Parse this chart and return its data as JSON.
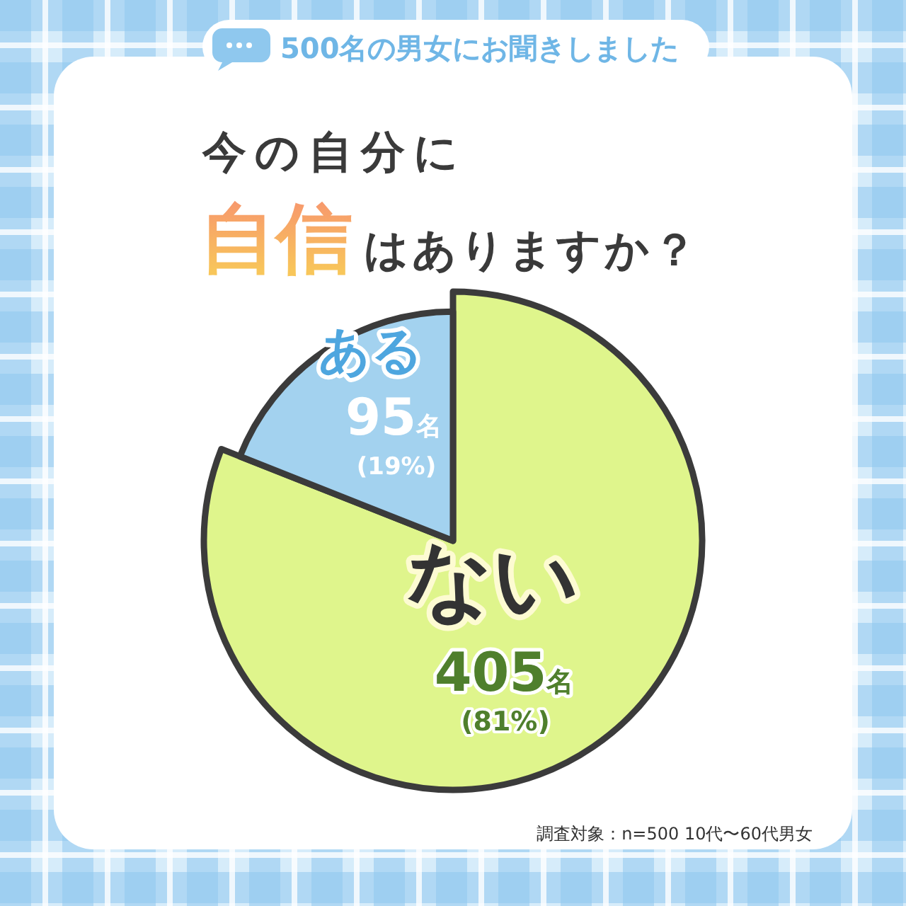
{
  "chart_data": {
    "type": "pie",
    "title": "今の自分に自信はありますか？",
    "subtitle": "500名の男女にお聞きしました",
    "categories": [
      "ある",
      "ない"
    ],
    "values": [
      95,
      405
    ],
    "colors": [
      "#a3d2ef",
      "#dff58c"
    ],
    "value_labels": [
      "95名 (19%)",
      "405名 (81%)"
    ],
    "annotations": [
      "調査対象：n=500 10代〜60代男女"
    ]
  }
}
